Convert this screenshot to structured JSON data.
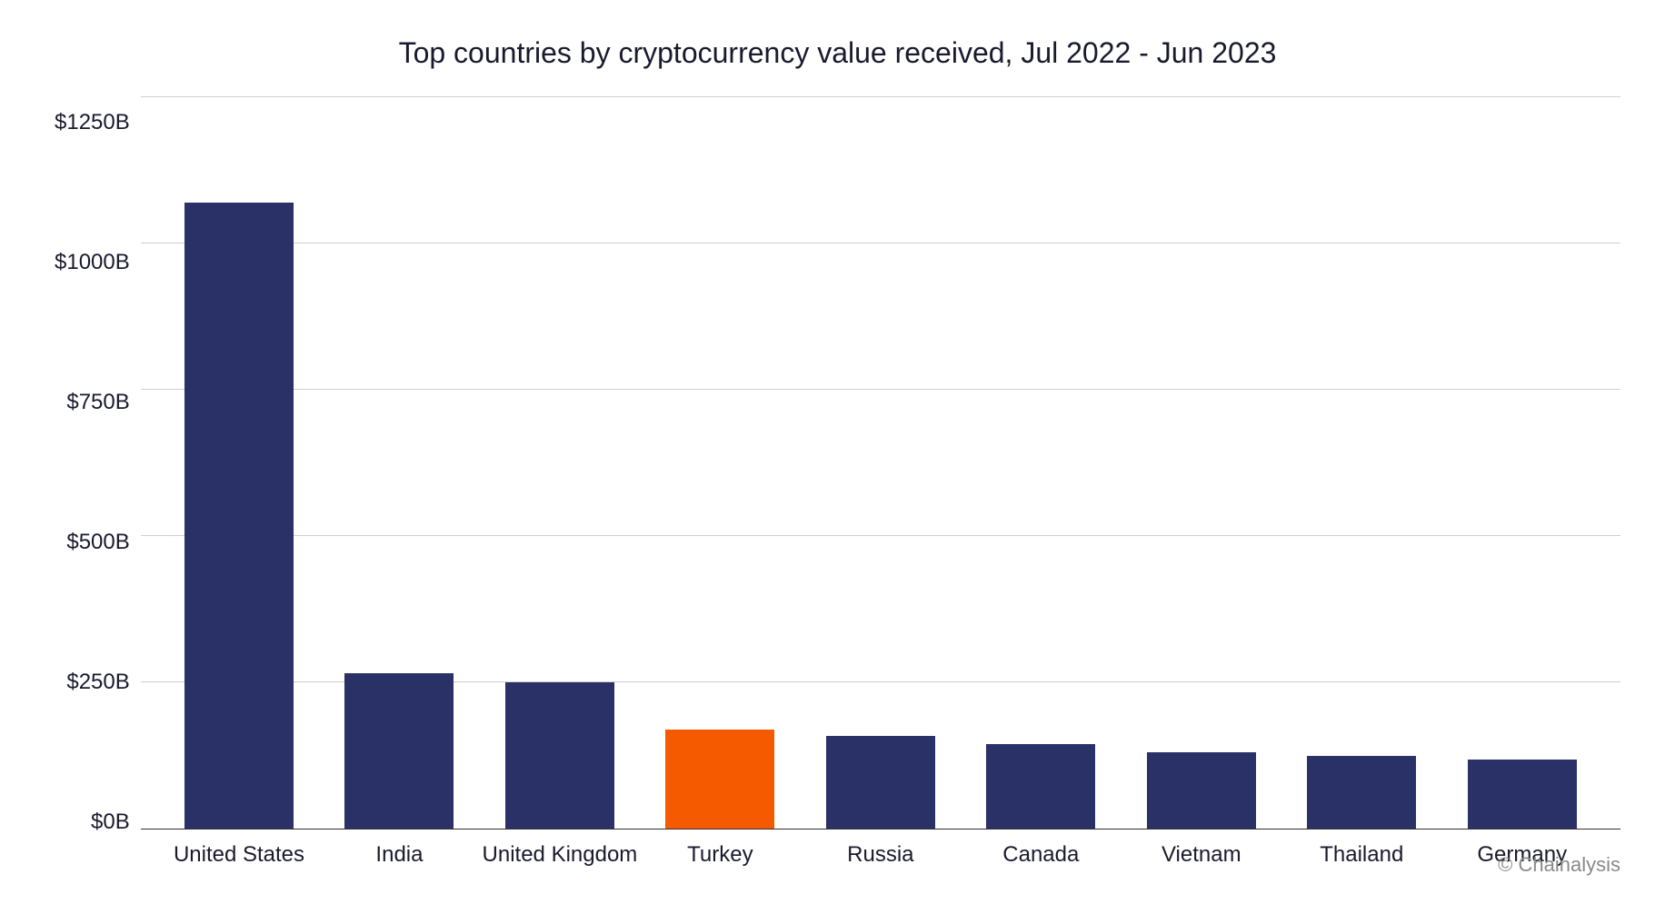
{
  "chart": {
    "type": "bar",
    "title": "Top countries by cryptocurrency value received, Jul 2022 - Jun 2023",
    "title_fontsize": 32,
    "title_color": "#1a1a2e",
    "categories": [
      "United States",
      "India",
      "United Kingdom",
      "Turkey",
      "Russia",
      "Canada",
      "Vietnam",
      "Thailand",
      "Germany"
    ],
    "values": [
      1070,
      265,
      250,
      170,
      158,
      145,
      130,
      125,
      118
    ],
    "bar_colors": [
      "#2a3167",
      "#2a3167",
      "#2a3167",
      "#f55a00",
      "#2a3167",
      "#2a3167",
      "#2a3167",
      "#2a3167",
      "#2a3167"
    ],
    "ylim": [
      0,
      1250
    ],
    "ytick_step": 250,
    "ytick_labels": [
      "$1250B",
      "$1000B",
      "$750B",
      "$500B",
      "$250B",
      "$0B"
    ],
    "axis_label_fontsize": 24,
    "axis_label_color": "#1a1a2e",
    "background_color": "#ffffff",
    "grid_color": "#d0d0d0",
    "baseline_color": "#333333",
    "bar_width": 0.68
  },
  "attribution": "© Chainalysis",
  "attribution_color": "#8a8a8a",
  "attribution_fontsize": 22
}
